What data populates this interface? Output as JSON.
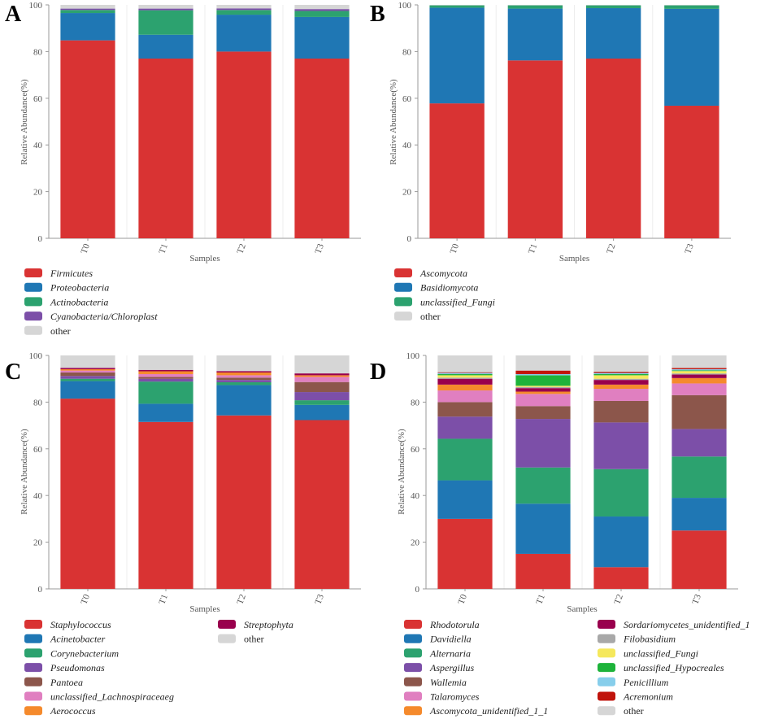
{
  "chart_data": [
    {
      "panel": "A",
      "type": "bar",
      "stacked": true,
      "xlabel": "Samples",
      "ylabel": "Relative Abundance(%)",
      "ylim": [
        0,
        100
      ],
      "yticks": [
        0,
        20,
        40,
        60,
        80,
        100
      ],
      "categories": [
        "T0",
        "T1",
        "T2",
        "T3"
      ],
      "series": [
        {
          "name": "Firmicutes",
          "italic": true,
          "color": "#d93333",
          "values": [
            84.8,
            77.0,
            80.0,
            77.0
          ]
        },
        {
          "name": "Proteobacteria",
          "italic": true,
          "color": "#1f77b4",
          "values": [
            11.7,
            10.2,
            15.8,
            17.8
          ]
        },
        {
          "name": "Actinobacteria",
          "italic": true,
          "color": "#2ca26f",
          "values": [
            1.3,
            10.5,
            2.0,
            2.6
          ]
        },
        {
          "name": "Cyanobacteria/Chloroplast",
          "italic": true,
          "color": "#7c4fa8",
          "values": [
            0.6,
            0.7,
            0.7,
            0.8
          ]
        },
        {
          "name": "other",
          "italic": false,
          "color": "#d6d6d6",
          "values": [
            1.6,
            1.6,
            1.5,
            1.8
          ]
        }
      ]
    },
    {
      "panel": "B",
      "type": "bar",
      "stacked": true,
      "xlabel": "Samples",
      "ylabel": "Relative Abundance(%)",
      "ylim": [
        0,
        100
      ],
      "yticks": [
        0,
        20,
        40,
        60,
        80,
        100
      ],
      "categories": [
        "T0",
        "T1",
        "T2",
        "T3"
      ],
      "series": [
        {
          "name": "Ascomycota",
          "italic": true,
          "color": "#d93333",
          "values": [
            57.8,
            76.2,
            77.0,
            56.8
          ]
        },
        {
          "name": "Basidiomycota",
          "italic": true,
          "color": "#1f77b4",
          "values": [
            41.0,
            22.2,
            21.6,
            41.5
          ]
        },
        {
          "name": "unclassified_Fungi",
          "italic": true,
          "color": "#2ca26f",
          "values": [
            1.0,
            1.4,
            1.2,
            1.5
          ]
        },
        {
          "name": "other",
          "italic": false,
          "color": "#d6d6d6",
          "values": [
            0.2,
            0.2,
            0.2,
            0.2
          ]
        }
      ]
    },
    {
      "panel": "C",
      "type": "bar",
      "stacked": true,
      "xlabel": "Samples",
      "ylabel": "Relative Abundance(%)",
      "ylim": [
        0,
        100
      ],
      "yticks": [
        0,
        20,
        40,
        60,
        80,
        100
      ],
      "categories": [
        "T0",
        "T1",
        "T2",
        "T3"
      ],
      "series": [
        {
          "name": "Staphylococcus",
          "italic": true,
          "color": "#d93333",
          "values": [
            81.5,
            71.5,
            74.3,
            72.3
          ]
        },
        {
          "name": "Acinetobacter",
          "italic": true,
          "color": "#1f77b4",
          "values": [
            7.5,
            7.8,
            13.0,
            6.5
          ]
        },
        {
          "name": "Corynebacterium",
          "italic": true,
          "color": "#2ca26f",
          "values": [
            1.0,
            9.5,
            1.2,
            2.0
          ]
        },
        {
          "name": "Pseudomonas",
          "italic": true,
          "color": "#7c4fa8",
          "values": [
            1.2,
            1.2,
            1.0,
            3.5
          ]
        },
        {
          "name": "Pantoea",
          "italic": true,
          "color": "#8c564b",
          "values": [
            1.5,
            0.8,
            1.0,
            4.3
          ]
        },
        {
          "name": "unclassified_Lachnospiraceaeg",
          "italic": true,
          "color": "#e07fc0",
          "values": [
            0.8,
            1.2,
            1.0,
            2.2
          ]
        },
        {
          "name": "Aerococcus",
          "italic": true,
          "color": "#f58a2c",
          "values": [
            0.6,
            1.2,
            1.2,
            0.7
          ]
        },
        {
          "name": "Streptophyta",
          "italic": true,
          "color": "#99004d",
          "values": [
            0.6,
            0.6,
            0.6,
            0.8
          ]
        },
        {
          "name": "other",
          "italic": false,
          "color": "#d6d6d6",
          "values": [
            5.3,
            6.2,
            6.7,
            7.7
          ]
        }
      ]
    },
    {
      "panel": "D",
      "type": "bar",
      "stacked": true,
      "xlabel": "Samples",
      "ylabel": "Relative Abundance(%)",
      "ylim": [
        0,
        100
      ],
      "yticks": [
        0,
        20,
        40,
        60,
        80,
        100
      ],
      "categories": [
        "T0",
        "T1",
        "T2",
        "T3"
      ],
      "series": [
        {
          "name": "Rhodotorula",
          "italic": true,
          "color": "#d93333",
          "values": [
            30.0,
            15.0,
            9.3,
            25.0
          ]
        },
        {
          "name": "Davidiella",
          "italic": true,
          "color": "#1f77b4",
          "values": [
            16.5,
            21.5,
            21.7,
            14.0
          ]
        },
        {
          "name": "Alternaria",
          "italic": true,
          "color": "#2ca26f",
          "values": [
            17.8,
            15.5,
            20.3,
            17.7
          ]
        },
        {
          "name": "Aspergillus",
          "italic": true,
          "color": "#7c4fa8",
          "values": [
            9.5,
            20.8,
            20.0,
            11.8
          ]
        },
        {
          "name": "Wallemia",
          "italic": true,
          "color": "#8c564b",
          "values": [
            6.2,
            5.5,
            9.2,
            14.5
          ]
        },
        {
          "name": "Talaromyces",
          "italic": true,
          "color": "#e07fc0",
          "values": [
            5.0,
            5.2,
            5.2,
            5.0
          ]
        },
        {
          "name": "Ascomycota_unidentified_1_1",
          "italic": true,
          "color": "#f58a2c",
          "values": [
            2.5,
            1.0,
            1.8,
            2.3
          ]
        },
        {
          "name": "Sordariomycetes_unidentified_1",
          "italic": true,
          "color": "#99004d",
          "values": [
            2.5,
            1.5,
            2.0,
            1.5
          ]
        },
        {
          "name": "Filobasidium",
          "italic": true,
          "color": "#a8a8a8",
          "values": [
            0.5,
            0.5,
            0.5,
            0.5
          ]
        },
        {
          "name": "unclassified_Fungi",
          "italic": true,
          "color": "#f5e85c",
          "values": [
            1.0,
            0.5,
            1.5,
            1.0
          ]
        },
        {
          "name": "unclassified_Hypocreales",
          "italic": true,
          "color": "#1db33a",
          "values": [
            0.5,
            4.5,
            0.5,
            0.3
          ]
        },
        {
          "name": "Penicillium",
          "italic": true,
          "color": "#87ceeb",
          "values": [
            0.5,
            0.5,
            0.5,
            0.5
          ]
        },
        {
          "name": "Acremonium",
          "italic": true,
          "color": "#c0140c",
          "values": [
            0.3,
            1.5,
            0.5,
            0.5
          ]
        },
        {
          "name": "other",
          "italic": false,
          "color": "#d6d6d6",
          "values": [
            7.2,
            6.5,
            7.0,
            5.4
          ]
        }
      ]
    }
  ]
}
